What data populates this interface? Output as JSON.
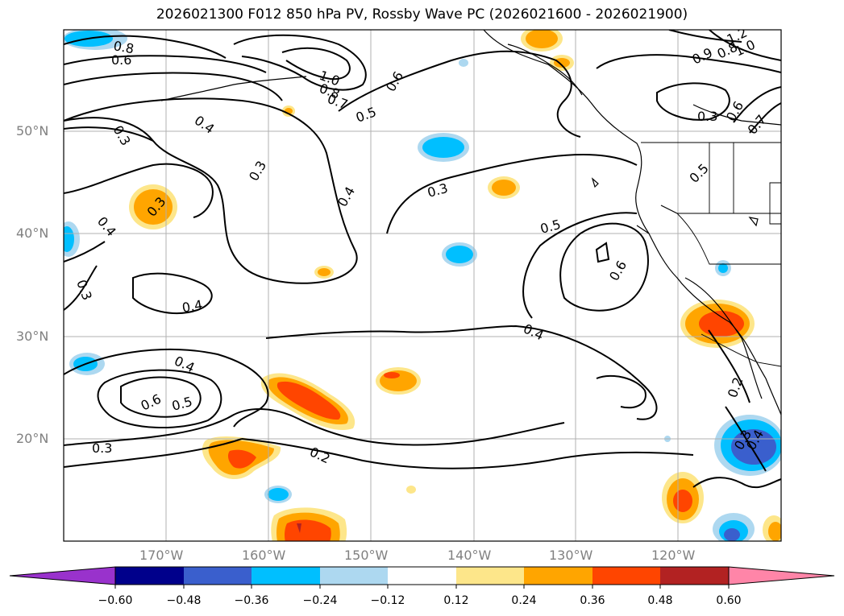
{
  "title": "2026021300 F012 850 hPa PV, Rossby Wave PC (2026021600 - 2026021900)",
  "lat_labels": [
    "50°N",
    "40°N",
    "30°N",
    "20°N"
  ],
  "lon_labels": [
    "170°W",
    "160°W",
    "150°W",
    "140°W",
    "130°W",
    "120°W"
  ],
  "colorbar": {
    "tick_labels": [
      "−0.60",
      "−0.48",
      "−0.36",
      "−0.24",
      "−0.12",
      "0.12",
      "0.24",
      "0.36",
      "0.48",
      "0.60"
    ],
    "colors": [
      "#9932cc",
      "#00008b",
      "#3a5fcd",
      "#00bfff",
      "#add8f0",
      "#ffffff",
      "#fde68a",
      "#ffa500",
      "#ff4500",
      "#b22222",
      "#ff85a8"
    ]
  },
  "contour_labels": [
    {
      "text": "0.8"
    },
    {
      "text": "0.6"
    },
    {
      "text": "1.0"
    },
    {
      "text": "0.8"
    },
    {
      "text": "0.7"
    },
    {
      "text": "0.6"
    },
    {
      "text": "0.5"
    },
    {
      "text": "0.4"
    },
    {
      "text": "0.3"
    },
    {
      "text": "0.3"
    },
    {
      "text": "0.3"
    },
    {
      "text": "0.4"
    },
    {
      "text": "0.3"
    },
    {
      "text": "0.4"
    },
    {
      "text": "0.3"
    },
    {
      "text": "0.5"
    },
    {
      "text": "0.6"
    },
    {
      "text": "0.5"
    },
    {
      "text": "0.4"
    },
    {
      "text": "0.4"
    },
    {
      "text": "0.6"
    },
    {
      "text": "0.5"
    },
    {
      "text": "0.3"
    },
    {
      "text": "0.2"
    },
    {
      "text": "0.4"
    },
    {
      "text": "0.2"
    },
    {
      "text": "0.3"
    },
    {
      "text": "0.4"
    },
    {
      "text": "0.3"
    },
    {
      "text": "0.6"
    },
    {
      "text": "0.7"
    },
    {
      "text": "1.2"
    },
    {
      "text": "1.0"
    },
    {
      "text": "0.8"
    },
    {
      "text": "0.9"
    }
  ]
}
